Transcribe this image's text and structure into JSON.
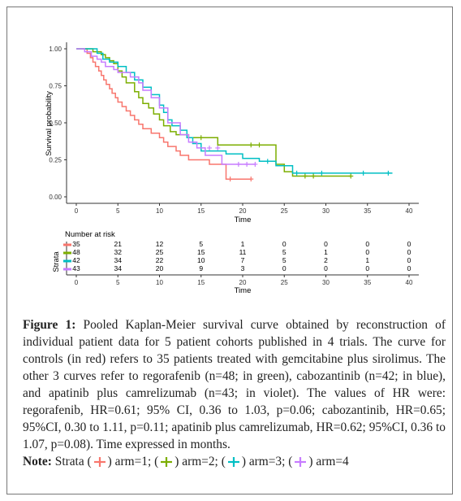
{
  "chart_data": {
    "type": "line",
    "subtype": "kaplan-meier-step",
    "ylabel": "Survival probability",
    "xlabel": "Time",
    "xlim": [
      0,
      40
    ],
    "ylim": [
      0,
      1
    ],
    "x_ticks": [
      "0",
      "5",
      "10",
      "15",
      "20",
      "25",
      "30",
      "35",
      "40"
    ],
    "y_ticks": [
      "0.00",
      "0.25",
      "0.50",
      "0.75",
      "1.00"
    ],
    "grid": false,
    "series": [
      {
        "color": "#F8766D",
        "points": [
          [
            0,
            1
          ],
          [
            1.3,
            1
          ],
          [
            1.3,
            0.97
          ],
          [
            1.7,
            0.97
          ],
          [
            1.7,
            0.94
          ],
          [
            2,
            0.94
          ],
          [
            2,
            0.91
          ],
          [
            2.3,
            0.91
          ],
          [
            2.3,
            0.88
          ],
          [
            2.7,
            0.88
          ],
          [
            2.7,
            0.85
          ],
          [
            3,
            0.85
          ],
          [
            3,
            0.82
          ],
          [
            3.3,
            0.82
          ],
          [
            3.3,
            0.79
          ],
          [
            3.6,
            0.79
          ],
          [
            3.6,
            0.76
          ],
          [
            4,
            0.76
          ],
          [
            4,
            0.73
          ],
          [
            4.3,
            0.73
          ],
          [
            4.3,
            0.7
          ],
          [
            4.7,
            0.7
          ],
          [
            4.7,
            0.67
          ],
          [
            5,
            0.67
          ],
          [
            5,
            0.64
          ],
          [
            5.5,
            0.64
          ],
          [
            5.5,
            0.61
          ],
          [
            6,
            0.61
          ],
          [
            6,
            0.58
          ],
          [
            6.5,
            0.58
          ],
          [
            6.5,
            0.55
          ],
          [
            7,
            0.55
          ],
          [
            7,
            0.52
          ],
          [
            7.5,
            0.52
          ],
          [
            7.5,
            0.49
          ],
          [
            8,
            0.49
          ],
          [
            8,
            0.46
          ],
          [
            9,
            0.46
          ],
          [
            9,
            0.43
          ],
          [
            10,
            0.43
          ],
          [
            10,
            0.4
          ],
          [
            10.5,
            0.4
          ],
          [
            10.5,
            0.37
          ],
          [
            11,
            0.37
          ],
          [
            11,
            0.34
          ],
          [
            12,
            0.34
          ],
          [
            12,
            0.31
          ],
          [
            12.5,
            0.31
          ],
          [
            12.5,
            0.28
          ],
          [
            13.5,
            0.28
          ],
          [
            13.5,
            0.25
          ],
          [
            16,
            0.25
          ],
          [
            16,
            0.22
          ],
          [
            18,
            0.22
          ],
          [
            18,
            0.12
          ],
          [
            21,
            0.12
          ]
        ],
        "censor": [
          [
            18.5,
            0.12
          ],
          [
            21,
            0.12
          ]
        ]
      },
      {
        "color": "#7CAE00",
        "points": [
          [
            0,
            1
          ],
          [
            2,
            1
          ],
          [
            2,
            0.98
          ],
          [
            3,
            0.98
          ],
          [
            3,
            0.96
          ],
          [
            3.5,
            0.96
          ],
          [
            3.5,
            0.94
          ],
          [
            4,
            0.94
          ],
          [
            4,
            0.92
          ],
          [
            4.5,
            0.92
          ],
          [
            4.5,
            0.9
          ],
          [
            5,
            0.9
          ],
          [
            5,
            0.85
          ],
          [
            5.5,
            0.85
          ],
          [
            5.5,
            0.81
          ],
          [
            6,
            0.81
          ],
          [
            6,
            0.77
          ],
          [
            7,
            0.77
          ],
          [
            7,
            0.71
          ],
          [
            7.5,
            0.71
          ],
          [
            7.5,
            0.67
          ],
          [
            8,
            0.67
          ],
          [
            8,
            0.63
          ],
          [
            8.7,
            0.63
          ],
          [
            8.7,
            0.6
          ],
          [
            9.3,
            0.6
          ],
          [
            9.3,
            0.56
          ],
          [
            10,
            0.56
          ],
          [
            10,
            0.52
          ],
          [
            10.5,
            0.52
          ],
          [
            10.5,
            0.48
          ],
          [
            11.3,
            0.48
          ],
          [
            11.3,
            0.44
          ],
          [
            12,
            0.44
          ],
          [
            12,
            0.42
          ],
          [
            13.5,
            0.42
          ],
          [
            13.5,
            0.4
          ],
          [
            17,
            0.4
          ],
          [
            17,
            0.35
          ],
          [
            24,
            0.35
          ],
          [
            24,
            0.22
          ],
          [
            25,
            0.22
          ],
          [
            25,
            0.17
          ],
          [
            26,
            0.17
          ],
          [
            26,
            0.14
          ],
          [
            33,
            0.14
          ]
        ],
        "censor": [
          [
            15,
            0.4
          ],
          [
            21,
            0.35
          ],
          [
            22,
            0.35
          ],
          [
            27.5,
            0.14
          ],
          [
            28.5,
            0.14
          ],
          [
            33,
            0.14
          ]
        ]
      },
      {
        "color": "#00BFC4",
        "points": [
          [
            0,
            1
          ],
          [
            2.5,
            1
          ],
          [
            2.5,
            0.97
          ],
          [
            3.2,
            0.97
          ],
          [
            3.2,
            0.93
          ],
          [
            4,
            0.93
          ],
          [
            4,
            0.91
          ],
          [
            5,
            0.91
          ],
          [
            5,
            0.88
          ],
          [
            6,
            0.88
          ],
          [
            6,
            0.84
          ],
          [
            7,
            0.84
          ],
          [
            7,
            0.79
          ],
          [
            8,
            0.79
          ],
          [
            8,
            0.74
          ],
          [
            9,
            0.74
          ],
          [
            9,
            0.69
          ],
          [
            10,
            0.69
          ],
          [
            10,
            0.62
          ],
          [
            10.5,
            0.62
          ],
          [
            10.5,
            0.57
          ],
          [
            11,
            0.57
          ],
          [
            11,
            0.52
          ],
          [
            11.5,
            0.52
          ],
          [
            11.5,
            0.48
          ],
          [
            12.5,
            0.48
          ],
          [
            12.5,
            0.45
          ],
          [
            13.3,
            0.45
          ],
          [
            13.3,
            0.4
          ],
          [
            14,
            0.4
          ],
          [
            14,
            0.36
          ],
          [
            15,
            0.36
          ],
          [
            15,
            0.31
          ],
          [
            18,
            0.31
          ],
          [
            18,
            0.29
          ],
          [
            20,
            0.29
          ],
          [
            20,
            0.26
          ],
          [
            22,
            0.26
          ],
          [
            22,
            0.24
          ],
          [
            24,
            0.24
          ],
          [
            24,
            0.21
          ],
          [
            26,
            0.21
          ],
          [
            26,
            0.16
          ],
          [
            38,
            0.16
          ]
        ],
        "censor": [
          [
            23,
            0.24
          ],
          [
            26.5,
            0.16
          ],
          [
            29.5,
            0.16
          ],
          [
            34.5,
            0.16
          ],
          [
            37.5,
            0.16
          ]
        ]
      },
      {
        "color": "#C77CFF",
        "points": [
          [
            0,
            1
          ],
          [
            1,
            1
          ],
          [
            1,
            0.98
          ],
          [
            1.8,
            0.98
          ],
          [
            1.8,
            0.95
          ],
          [
            2.5,
            0.95
          ],
          [
            2.5,
            0.93
          ],
          [
            3,
            0.93
          ],
          [
            3,
            0.91
          ],
          [
            3.5,
            0.91
          ],
          [
            3.5,
            0.88
          ],
          [
            4.5,
            0.88
          ],
          [
            4.5,
            0.86
          ],
          [
            5,
            0.86
          ],
          [
            5,
            0.84
          ],
          [
            6.5,
            0.84
          ],
          [
            6.5,
            0.81
          ],
          [
            7.5,
            0.81
          ],
          [
            7.5,
            0.77
          ],
          [
            8,
            0.77
          ],
          [
            8,
            0.72
          ],
          [
            9,
            0.72
          ],
          [
            9,
            0.67
          ],
          [
            10,
            0.67
          ],
          [
            10,
            0.6
          ],
          [
            11,
            0.6
          ],
          [
            11,
            0.5
          ],
          [
            12.5,
            0.5
          ],
          [
            12.5,
            0.42
          ],
          [
            13.5,
            0.42
          ],
          [
            13.5,
            0.37
          ],
          [
            14.5,
            0.37
          ],
          [
            14.5,
            0.33
          ],
          [
            15.5,
            0.33
          ],
          [
            15.5,
            0.28
          ],
          [
            17.5,
            0.28
          ],
          [
            17.5,
            0.22
          ],
          [
            21.5,
            0.22
          ]
        ],
        "censor": [
          [
            16,
            0.33
          ],
          [
            17,
            0.33
          ],
          [
            19.5,
            0.22
          ],
          [
            20.5,
            0.22
          ],
          [
            21.5,
            0.22
          ]
        ]
      }
    ],
    "risk_table": {
      "title": "Number at risk",
      "ylabel": "Strata",
      "times": [
        0,
        5,
        10,
        15,
        20,
        25,
        30,
        35,
        40
      ],
      "rows": [
        {
          "color": "#F8766D",
          "values": [
            "35",
            "21",
            "12",
            "5",
            "1",
            "0",
            "0",
            "0",
            "0"
          ]
        },
        {
          "color": "#7CAE00",
          "values": [
            "48",
            "32",
            "25",
            "15",
            "11",
            "5",
            "1",
            "0",
            "0"
          ]
        },
        {
          "color": "#00BFC4",
          "values": [
            "42",
            "34",
            "22",
            "10",
            "7",
            "5",
            "2",
            "1",
            "0"
          ]
        },
        {
          "color": "#C77CFF",
          "values": [
            "43",
            "34",
            "20",
            "9",
            "3",
            "0",
            "0",
            "0",
            "0"
          ]
        }
      ],
      "x_ticks": [
        "0",
        "5",
        "10",
        "15",
        "20",
        "25",
        "30",
        "35",
        "40"
      ],
      "xlabel": "Time"
    }
  },
  "caption": {
    "label": "Figure 1:",
    "text": " Pooled Kaplan-Meier survival curve obtained by reconstruction of individual patient data for 5 patient cohorts published in 4 trials. The curve for controls (in red) refers to 35 patients treated with gemcitabine plus sirolimus. The other 3 curves refer to regorafenib (n=48; in green), cabozantinib (n=42; in blue), and apatinib plus camrelizumab (n=43; in violet). The values of HR were: regorafenib, HR=0.61; 95% CI, 0.36 to 1.03, p=0.06; cabozantinib, HR=0.65; 95%CI, 0.30 to 1.11, p=0.11; apatinib plus camrelizumab, HR=0.62; 95%CI, 0.36 to 1.07, p=0.08). Time expressed in months."
  },
  "note": {
    "label": "Note:",
    "prefix": "Strata",
    "items": [
      {
        "label": "arm=1;",
        "color": "#F8766D"
      },
      {
        "label": "arm=2;",
        "color": "#7CAE00"
      },
      {
        "label": "arm=3;",
        "color": "#00BFC4"
      },
      {
        "label": "arm=4",
        "color": "#C77CFF"
      }
    ]
  }
}
